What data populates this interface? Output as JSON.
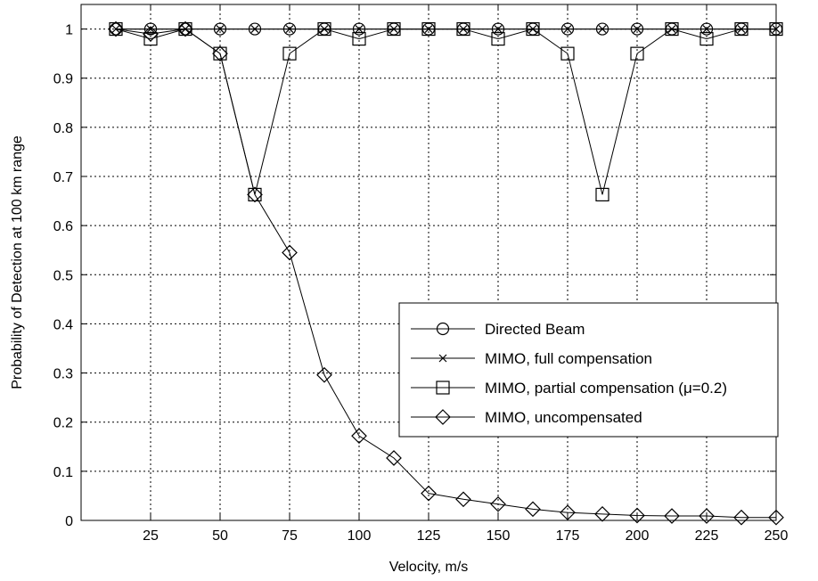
{
  "chart_data": {
    "type": "line",
    "title": "",
    "xlabel": "Velocity, m/s",
    "ylabel": "Probability of Detection at 100 km range",
    "xlim": [
      0,
      250
    ],
    "ylim": [
      0,
      1.05
    ],
    "xticks": [
      25,
      50,
      75,
      100,
      125,
      150,
      175,
      200,
      225,
      250
    ],
    "yticks": [
      0,
      0.1,
      0.2,
      0.3,
      0.4,
      0.5,
      0.6,
      0.7,
      0.8,
      0.9,
      1
    ],
    "grid": true,
    "legend_position": "lower-right",
    "x": [
      12.5,
      25,
      37.5,
      50,
      62.5,
      75,
      87.5,
      100,
      112.5,
      125,
      137.5,
      150,
      162.5,
      175,
      187.5,
      200,
      212.5,
      225,
      237.5,
      250
    ],
    "series": [
      {
        "name": "Directed Beam",
        "marker": "circle",
        "values": [
          1,
          1,
          1,
          1,
          1,
          1,
          1,
          1,
          1,
          1,
          1,
          1,
          1,
          1,
          1,
          1,
          1,
          1,
          1,
          1
        ]
      },
      {
        "name": "MIMO, full compensation",
        "marker": "x",
        "values": [
          1,
          1,
          1,
          1,
          1,
          1,
          1,
          1,
          1,
          1,
          1,
          1,
          1,
          1,
          1,
          1,
          1,
          1,
          1,
          1
        ]
      },
      {
        "name": "MIMO, partial compensation (μ=0.2)",
        "marker": "square",
        "values": [
          1,
          0.98,
          1,
          0.95,
          0.663,
          0.95,
          1,
          0.98,
          1,
          1,
          1,
          0.98,
          1,
          0.95,
          0.663,
          0.95,
          1,
          0.98,
          1,
          1
        ]
      },
      {
        "name": "MIMO, uncompensated",
        "marker": "diamond",
        "values": [
          1,
          0.99,
          1,
          0.95,
          0.663,
          0.545,
          0.296,
          0.172,
          0.127,
          0.055,
          0.043,
          0.033,
          0.023,
          0.016,
          0.013,
          0.01,
          0.009,
          0.009,
          0.006,
          0.006
        ]
      }
    ]
  }
}
